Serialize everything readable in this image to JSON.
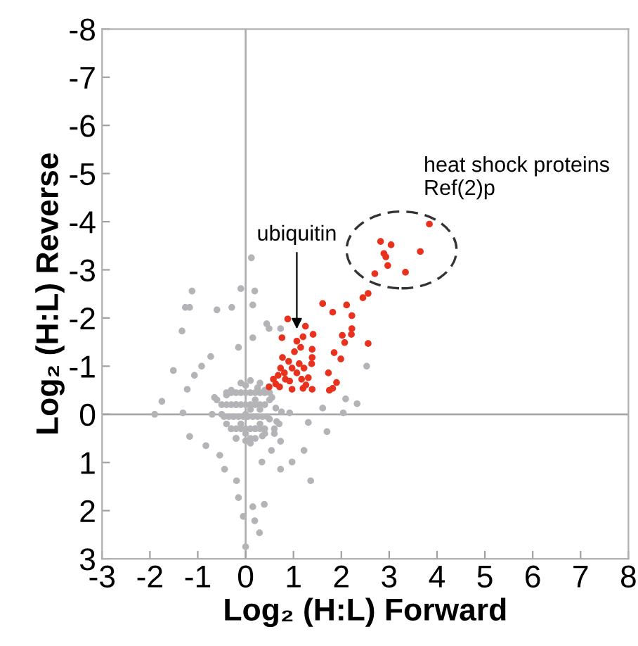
{
  "chart_data": {
    "type": "scatter",
    "xlabel": "Log₂ (H:L) Forward",
    "ylabel": "Log₂ (H:L) Reverse",
    "xlim": [
      -3,
      8
    ],
    "ylim": [
      3,
      -8
    ],
    "xticks": [
      -3,
      -2,
      -1,
      0,
      1,
      2,
      3,
      4,
      5,
      6,
      7,
      8
    ],
    "yticks": [
      3,
      2,
      1,
      0,
      -1,
      -2,
      -3,
      -4,
      -5,
      -6,
      -7,
      -8
    ],
    "grid": false,
    "legend": false,
    "marker": "circle",
    "ref_lines": [
      {
        "axis": "x",
        "value": 0,
        "color": "#b0b0b0"
      },
      {
        "axis": "y",
        "value": 0,
        "color": "#a8a8a8"
      }
    ],
    "annotations": [
      {
        "text": "ubiquitin",
        "x": 1.07,
        "y": -1.69
      },
      "heat shock proteins\nRef(2)p"
    ],
    "series": [
      {
        "color": "#b4b4b8",
        "x": [
          -1.9,
          -1.75,
          -1.51,
          -1.33,
          -1.12,
          -1.26,
          -1.17,
          -0.6,
          -0.29,
          0.12,
          -0.1,
          0.19,
          0.15,
          0.44,
          0.49,
          0.73,
          0.15,
          -0.15,
          -0.73,
          -0.92,
          -1.07,
          -1.22,
          -1.31,
          -1.17,
          -0.83,
          -0.54,
          -0.44,
          -0.19,
          -0.15,
          -0.05,
          0.15,
          0.19,
          0.29,
          0.0,
          0.39,
          0.73,
          0.97,
          1.36,
          1.22,
          1.7,
          2.04,
          2.33,
          2.53,
          2.09,
          1.61,
          1.31,
          0.73,
          0.54,
          0.34,
          0.92,
          0.63,
          -0.5,
          -0.4,
          -0.3,
          0.0,
          0.0,
          0.0,
          0.2,
          0.3,
          0.4,
          0.5,
          0.1,
          -0.2,
          0.2,
          -0.4,
          0.4,
          -0.1,
          0.1,
          0.3,
          -0.3,
          0.5,
          0.6,
          -0.6,
          0.1,
          -0.2,
          0.25,
          -0.5,
          -0.4,
          -0.3,
          -0.2,
          -0.1,
          0.0,
          0.1,
          0.2,
          0.3,
          0.4,
          -0.45,
          -0.35,
          -0.25,
          -0.15,
          -0.05,
          0.05,
          0.15,
          0.25,
          0.35,
          0.45,
          -0.4,
          -0.3,
          -0.2,
          -0.1,
          0.0,
          0.1,
          0.2,
          0.3,
          0.4,
          0.5,
          -0.3,
          -0.2,
          -0.1,
          0.0,
          0.1,
          0.2,
          0.3,
          0.4,
          -0.2,
          0.0,
          0.2,
          0.35,
          -0.1,
          0.1,
          0.3,
          0.55,
          0.65,
          -0.7,
          -0.65,
          0.7,
          0.75,
          0.6
        ],
        "values": [
          0.0,
          -0.27,
          -0.91,
          -1.73,
          -2.56,
          -2.22,
          -2.22,
          -2.17,
          -2.22,
          -3.25,
          -2.61,
          -2.56,
          -2.27,
          -1.88,
          -1.78,
          -1.78,
          -1.59,
          -1.39,
          -1.2,
          -1.0,
          -0.81,
          -0.52,
          -0.03,
          0.46,
          0.65,
          0.85,
          1.14,
          1.38,
          1.73,
          2.12,
          1.92,
          2.21,
          2.46,
          2.75,
          1.87,
          1.14,
          0.99,
          1.38,
          0.75,
          0.36,
          -0.03,
          -0.22,
          -1.0,
          -0.32,
          -0.13,
          0.17,
          0.56,
          0.75,
          0.99,
          -0.03,
          -0.13,
          0.0,
          -0.4,
          0.3,
          -0.6,
          0.0,
          0.4,
          -0.3,
          0.2,
          -0.5,
          0.1,
          0.6,
          -0.2,
          0.3,
          0.2,
          0.4,
          0.2,
          -0.1,
          -0.1,
          -0.5,
          -0.3,
          0.3,
          -0.3,
          0.5,
          0.5,
          -0.55,
          -0.2,
          -0.2,
          -0.2,
          -0.2,
          -0.2,
          -0.2,
          -0.2,
          -0.2,
          -0.2,
          -0.2,
          0.05,
          0.05,
          0.05,
          0.05,
          0.05,
          0.05,
          0.05,
          0.05,
          0.05,
          0.05,
          -0.45,
          -0.45,
          -0.45,
          -0.45,
          -0.45,
          -0.45,
          -0.45,
          -0.45,
          -0.45,
          -0.45,
          0.3,
          0.3,
          0.3,
          0.3,
          0.3,
          0.3,
          0.3,
          0.3,
          0.5,
          0.55,
          0.5,
          0.45,
          -0.65,
          -0.7,
          -0.65,
          -0.35,
          0.15,
          0.0,
          -0.35,
          0.2,
          -0.05,
          0.4
        ]
      },
      {
        "color": "#e8321e",
        "x": [
          3.84,
          2.82,
          3.04,
          2.89,
          2.93,
          3.65,
          2.97,
          3.34,
          2.7,
          2.56,
          2.45,
          1.61,
          2.11,
          1.82,
          2.22,
          0.88,
          1.25,
          2.22,
          2.02,
          1.41,
          0.76,
          1.2,
          1.07,
          2.07,
          2.21,
          2.56,
          1.15,
          1.39,
          1.02,
          1.85,
          1.39,
          0.77,
          1.99,
          0.9,
          1.12,
          1.38,
          0.73,
          0.97,
          1.22,
          0.81,
          1.07,
          0.68,
          1.73,
          0.58,
          0.83,
          1.17,
          1.31,
          1.9,
          0.49,
          0.71,
          0.97,
          1.2,
          1.39,
          1.75,
          1.82,
          0.63,
          1.26,
          0.92
        ],
        "values": [
          -3.95,
          -3.59,
          -3.52,
          -3.34,
          -3.27,
          -3.38,
          -3.09,
          -2.95,
          -2.92,
          -2.51,
          -2.42,
          -2.3,
          -2.27,
          -2.12,
          -2.05,
          -1.98,
          -1.83,
          -1.78,
          -1.64,
          -1.66,
          -1.59,
          -1.61,
          -1.52,
          -1.49,
          -1.66,
          -1.47,
          -1.39,
          -1.35,
          -1.3,
          -1.28,
          -1.18,
          -1.18,
          -1.15,
          -1.1,
          -1.05,
          -1.05,
          -0.96,
          -0.96,
          -0.96,
          -0.86,
          -0.86,
          -0.81,
          -0.86,
          -0.73,
          -0.73,
          -0.73,
          -0.76,
          -0.66,
          -0.57,
          -0.57,
          -0.52,
          -0.54,
          -0.52,
          -0.5,
          -0.54,
          -0.63,
          -0.61,
          -0.69
        ]
      }
    ]
  }
}
